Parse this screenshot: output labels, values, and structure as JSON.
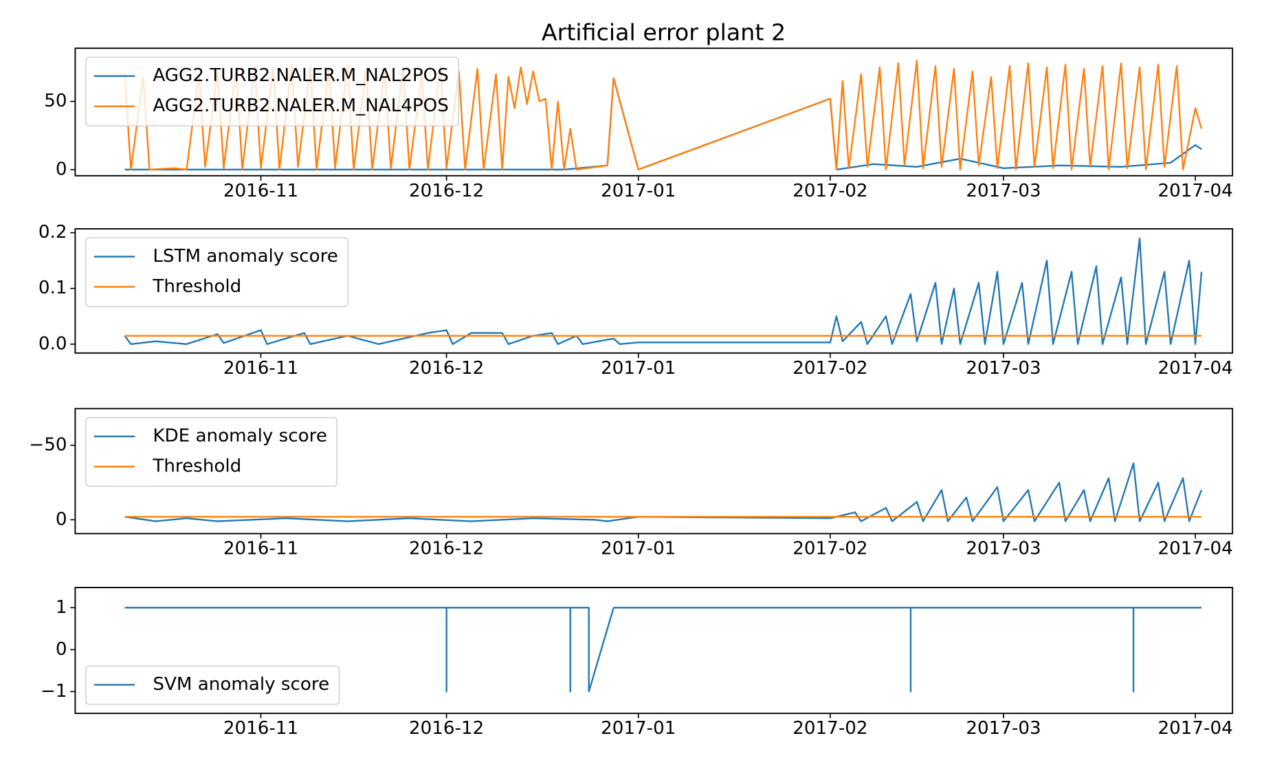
{
  "chart_data": [
    {
      "type": "line",
      "title": "Artificial error plant 2",
      "legend": "upper left",
      "xlim": [
        "2016-10-02",
        "2017-04-07"
      ],
      "xticks": [
        {
          "value": "2016-11-01",
          "label": "2016-11"
        },
        {
          "value": "2016-12-01",
          "label": "2016-12"
        },
        {
          "value": "2017-01-01",
          "label": "2017-01"
        },
        {
          "value": "2017-02-01",
          "label": "2017-02"
        },
        {
          "value": "2017-03-01",
          "label": "2017-03"
        },
        {
          "value": "2017-04-01",
          "label": "2017-04"
        }
      ],
      "ylim": [
        -4.5,
        89
      ],
      "yticks": [
        0,
        50
      ],
      "series": [
        {
          "name": "AGG2.TURB2.NALER.M_NAL2POS",
          "color": "#1f77b4",
          "x": [
            "2016-10-10",
            "2016-12-20",
            "2016-12-27",
            "2016-12-28",
            "2017-01-01",
            "2017-02-01",
            "2017-02-02",
            "2017-02-08",
            "2017-02-15",
            "2017-02-22",
            "2017-03-01",
            "2017-03-10",
            "2017-03-20",
            "2017-03-28",
            "2017-04-01",
            "2017-04-02"
          ],
          "values": [
            0,
            0,
            3,
            67,
            0,
            52,
            0,
            4,
            2,
            8,
            1,
            3,
            2,
            5,
            18,
            15
          ]
        },
        {
          "name": "AGG2.TURB2.NALER.M_NAL4POS",
          "color": "#ff7f0e",
          "x": [
            "2016-10-10",
            "2016-10-11",
            "2016-10-13",
            "2016-10-14",
            "2016-10-18",
            "2016-10-20",
            "2016-10-22",
            "2016-10-23",
            "2016-10-25",
            "2016-10-26",
            "2016-10-28",
            "2016-10-29",
            "2016-10-31",
            "2016-11-01",
            "2016-11-03",
            "2016-11-04",
            "2016-11-06",
            "2016-11-07",
            "2016-11-09",
            "2016-11-10",
            "2016-11-12",
            "2016-11-13",
            "2016-11-15",
            "2016-11-16",
            "2016-11-18",
            "2016-11-19",
            "2016-11-21",
            "2016-11-22",
            "2016-11-24",
            "2016-11-25",
            "2016-11-27",
            "2016-11-28",
            "2016-11-30",
            "2016-12-01",
            "2016-12-03",
            "2016-12-04",
            "2016-12-06",
            "2016-12-07",
            "2016-12-09",
            "2016-12-10",
            "2016-12-11",
            "2016-12-12",
            "2016-12-13",
            "2016-12-14",
            "2016-12-15",
            "2016-12-16",
            "2016-12-17",
            "2016-12-18",
            "2016-12-19",
            "2016-12-20",
            "2016-12-21",
            "2016-12-22",
            "2016-12-27",
            "2016-12-28",
            "2017-01-01",
            "2017-02-01",
            "2017-02-02",
            "2017-02-03",
            "2017-02-04",
            "2017-02-06",
            "2017-02-07",
            "2017-02-09",
            "2017-02-10",
            "2017-02-12",
            "2017-02-13",
            "2017-02-15",
            "2017-02-16",
            "2017-02-18",
            "2017-02-19",
            "2017-02-21",
            "2017-02-22",
            "2017-02-24",
            "2017-02-25",
            "2017-02-27",
            "2017-02-28",
            "2017-03-02",
            "2017-03-03",
            "2017-03-05",
            "2017-03-06",
            "2017-03-08",
            "2017-03-09",
            "2017-03-11",
            "2017-03-12",
            "2017-03-14",
            "2017-03-15",
            "2017-03-17",
            "2017-03-18",
            "2017-03-20",
            "2017-03-21",
            "2017-03-23",
            "2017-03-24",
            "2017-03-26",
            "2017-03-27",
            "2017-03-29",
            "2017-03-30",
            "2017-04-01",
            "2017-04-02"
          ],
          "values": [
            70,
            0,
            68,
            0,
            1,
            0,
            70,
            2,
            72,
            1,
            75,
            0,
            76,
            1,
            75,
            0,
            77,
            2,
            76,
            0,
            75,
            1,
            77,
            0,
            74,
            0,
            73,
            1,
            75,
            0,
            70,
            0,
            76,
            1,
            72,
            0,
            74,
            0,
            70,
            0,
            68,
            45,
            75,
            48,
            72,
            50,
            52,
            0,
            50,
            0,
            30,
            0,
            3,
            67,
            0,
            52,
            0,
            65,
            1,
            70,
            2,
            75,
            0,
            78,
            3,
            80,
            1,
            76,
            2,
            74,
            0,
            72,
            3,
            68,
            1,
            76,
            0,
            78,
            2,
            75,
            1,
            77,
            0,
            74,
            2,
            76,
            0,
            78,
            1,
            75,
            0,
            77,
            2,
            76,
            0,
            45,
            30
          ]
        }
      ]
    },
    {
      "type": "line",
      "legend": "upper left",
      "xlim": [
        "2016-10-02",
        "2017-04-07"
      ],
      "xticks": [
        {
          "value": "2016-11-01",
          "label": "2016-11"
        },
        {
          "value": "2016-12-01",
          "label": "2016-12"
        },
        {
          "value": "2017-01-01",
          "label": "2017-01"
        },
        {
          "value": "2017-02-01",
          "label": "2017-02"
        },
        {
          "value": "2017-03-01",
          "label": "2017-03"
        },
        {
          "value": "2017-04-01",
          "label": "2017-04"
        }
      ],
      "ylim": [
        -0.016,
        0.207
      ],
      "yticks": [
        {
          "value": 0,
          "label": "0.0"
        },
        0.1,
        0.2
      ],
      "series": [
        {
          "name": "LSTM anomaly score",
          "color": "#1f77b4",
          "x": [
            "2016-10-10",
            "2016-10-11",
            "2016-10-15",
            "2016-10-20",
            "2016-10-25",
            "2016-10-26",
            "2016-11-01",
            "2016-11-02",
            "2016-11-08",
            "2016-11-09",
            "2016-11-15",
            "2016-11-20",
            "2016-11-28",
            "2016-12-01",
            "2016-12-02",
            "2016-12-05",
            "2016-12-10",
            "2016-12-11",
            "2016-12-15",
            "2016-12-18",
            "2016-12-19",
            "2016-12-22",
            "2016-12-23",
            "2016-12-28",
            "2016-12-29",
            "2017-01-01",
            "2017-02-01",
            "2017-02-02",
            "2017-02-03",
            "2017-02-06",
            "2017-02-07",
            "2017-02-10",
            "2017-02-11",
            "2017-02-14",
            "2017-02-15",
            "2017-02-18",
            "2017-02-19",
            "2017-02-21",
            "2017-02-22",
            "2017-02-25",
            "2017-02-26",
            "2017-02-28",
            "2017-03-01",
            "2017-03-04",
            "2017-03-05",
            "2017-03-08",
            "2017-03-09",
            "2017-03-12",
            "2017-03-13",
            "2017-03-16",
            "2017-03-17",
            "2017-03-20",
            "2017-03-21",
            "2017-03-23",
            "2017-03-24",
            "2017-03-27",
            "2017-03-28",
            "2017-03-31",
            "2017-04-01",
            "2017-04-02"
          ],
          "values": [
            0.015,
            0,
            0.005,
            0,
            0.018,
            0.002,
            0.025,
            0,
            0.02,
            0,
            0.015,
            0,
            0.02,
            0.025,
            0,
            0.02,
            0.02,
            0,
            0.015,
            0.02,
            0,
            0.015,
            0,
            0.01,
            0,
            0.003,
            0.003,
            0.05,
            0.005,
            0.04,
            0,
            0.05,
            0,
            0.09,
            0.005,
            0.11,
            0,
            0.1,
            0,
            0.11,
            0,
            0.13,
            0,
            0.11,
            0,
            0.15,
            0,
            0.13,
            0,
            0.14,
            0,
            0.12,
            0,
            0.19,
            0,
            0.13,
            0,
            0.15,
            0,
            0.13
          ]
        },
        {
          "name": "Threshold",
          "color": "#ff7f0e",
          "x": [
            "2016-10-10",
            "2017-04-02"
          ],
          "values": [
            0.015,
            0.015
          ]
        }
      ]
    },
    {
      "type": "line",
      "legend": "upper left",
      "xlim": [
        "2016-10-02",
        "2017-04-07"
      ],
      "xticks": [
        {
          "value": "2016-11-01",
          "label": "2016-11"
        },
        {
          "value": "2016-12-01",
          "label": "2016-12"
        },
        {
          "value": "2017-01-01",
          "label": "2017-01"
        },
        {
          "value": "2017-02-01",
          "label": "2017-02"
        },
        {
          "value": "2017-03-01",
          "label": "2017-03"
        },
        {
          "value": "2017-04-01",
          "label": "2017-04"
        }
      ],
      "ylim": [
        9.3,
        -74.7
      ],
      "yticks": [
        0,
        {
          "value": -50,
          "label": "−50"
        }
      ],
      "series": [
        {
          "name": "KDE anomaly score",
          "color": "#1f77b4",
          "x": [
            "2016-10-10",
            "2016-10-15",
            "2016-10-20",
            "2016-10-25",
            "2016-11-05",
            "2016-11-15",
            "2016-11-25",
            "2016-12-05",
            "2016-12-15",
            "2016-12-25",
            "2016-12-27",
            "2017-01-01",
            "2017-02-01",
            "2017-02-05",
            "2017-02-06",
            "2017-02-10",
            "2017-02-11",
            "2017-02-15",
            "2017-02-16",
            "2017-02-19",
            "2017-02-20",
            "2017-02-23",
            "2017-02-24",
            "2017-02-28",
            "2017-03-01",
            "2017-03-05",
            "2017-03-06",
            "2017-03-10",
            "2017-03-11",
            "2017-03-14",
            "2017-03-15",
            "2017-03-18",
            "2017-03-19",
            "2017-03-22",
            "2017-03-23",
            "2017-03-26",
            "2017-03-27",
            "2017-03-30",
            "2017-03-31",
            "2017-04-02"
          ],
          "values": [
            -2,
            1,
            -1,
            1,
            -1,
            1,
            -1,
            1,
            -1,
            0,
            1,
            -2,
            -1,
            -5,
            1,
            -8,
            1,
            -12,
            1,
            -20,
            1,
            -15,
            1,
            -22,
            1,
            -20,
            1,
            -25,
            1,
            -20,
            1,
            -28,
            1,
            -38,
            1,
            -25,
            1,
            -28,
            1,
            -20
          ]
        },
        {
          "name": "Threshold",
          "color": "#ff7f0e",
          "x": [
            "2016-10-10",
            "2017-04-02"
          ],
          "values": [
            -2,
            -2
          ]
        }
      ]
    },
    {
      "type": "line",
      "legend": "lower left",
      "xlim": [
        "2016-10-02",
        "2017-04-07"
      ],
      "xticks": [
        {
          "value": "2016-11-01",
          "label": "2016-11"
        },
        {
          "value": "2016-12-01",
          "label": "2016-12"
        },
        {
          "value": "2017-01-01",
          "label": "2017-01"
        },
        {
          "value": "2017-02-01",
          "label": "2017-02"
        },
        {
          "value": "2017-03-01",
          "label": "2017-03"
        },
        {
          "value": "2017-04-01",
          "label": "2017-04"
        }
      ],
      "ylim": [
        -1.52,
        1.48
      ],
      "yticks": [
        {
          "value": -1,
          "label": "−1"
        },
        0,
        1
      ],
      "series": [
        {
          "name": "SVM anomaly score",
          "color": "#1f77b4",
          "x": [
            "2016-10-10",
            "2016-12-01",
            "2016-12-01",
            "2016-12-01",
            "2016-12-21",
            "2016-12-21",
            "2016-12-21",
            "2016-12-24",
            "2016-12-24",
            "2016-12-28",
            "2017-02-14",
            "2017-02-14",
            "2017-02-14",
            "2017-03-22",
            "2017-03-22",
            "2017-03-22",
            "2017-04-02"
          ],
          "values": [
            1,
            1,
            -1,
            1,
            1,
            -1,
            1,
            1,
            -1,
            1,
            1,
            -1,
            1,
            1,
            -1,
            1,
            1
          ]
        }
      ]
    }
  ]
}
